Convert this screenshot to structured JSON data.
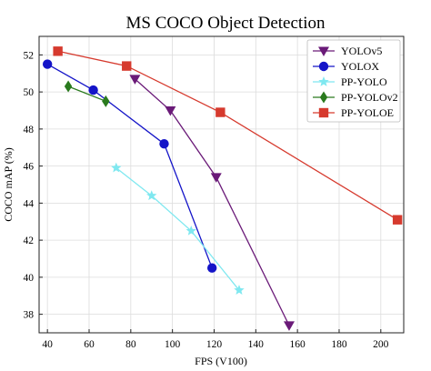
{
  "chart_data": {
    "type": "line",
    "title": "MS COCO Object Detection",
    "xlabel": "FPS (V100)",
    "ylabel": "COCO mAP (%)",
    "xlim": [
      36,
      211
    ],
    "ylim": [
      37,
      53
    ],
    "xticks": [
      40,
      60,
      80,
      100,
      120,
      140,
      160,
      180,
      200
    ],
    "yticks": [
      38,
      40,
      42,
      44,
      46,
      48,
      50,
      52
    ],
    "grid": true,
    "legend_position": "top-right",
    "series": [
      {
        "name": "YOLOv5",
        "color": "#6a1a78",
        "marker": "triangle-down",
        "x": [
          82,
          99,
          121,
          156
        ],
        "y": [
          50.7,
          49.0,
          45.4,
          37.4
        ]
      },
      {
        "name": "YOLOX",
        "color": "#1414c8",
        "marker": "circle",
        "x": [
          40,
          62,
          96,
          119
        ],
        "y": [
          51.5,
          50.1,
          47.2,
          40.5
        ]
      },
      {
        "name": "PP-YOLO",
        "color": "#7fe8f0",
        "marker": "star",
        "x": [
          73,
          90,
          109,
          132
        ],
        "y": [
          45.9,
          44.4,
          42.5,
          39.3
        ]
      },
      {
        "name": "PP-YOLOv2",
        "color": "#2a7a1e",
        "marker": "diamond",
        "x": [
          50,
          68
        ],
        "y": [
          50.3,
          49.5
        ]
      },
      {
        "name": "PP-YOLOE",
        "color": "#d63a2e",
        "marker": "square",
        "x": [
          45,
          78,
          123,
          208
        ],
        "y": [
          52.2,
          51.4,
          48.9,
          43.1
        ]
      }
    ]
  }
}
